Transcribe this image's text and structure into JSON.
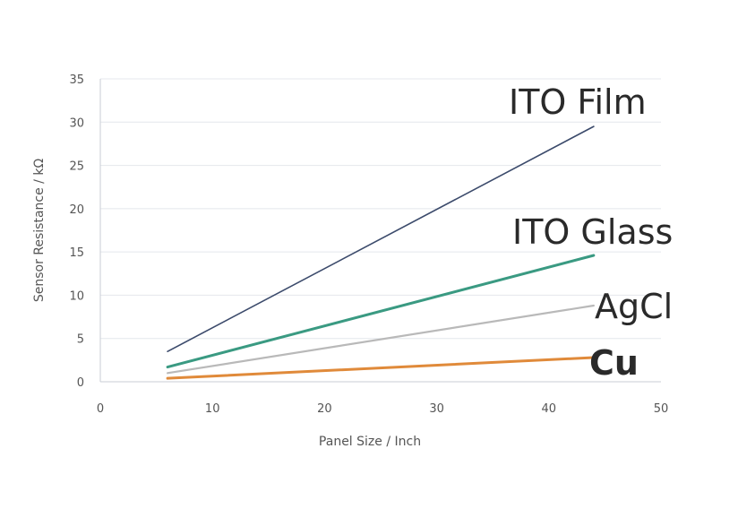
{
  "chart_data": {
    "type": "line",
    "title": "",
    "xlabel": "Panel Size / Inch",
    "ylabel": "Sensor Resistance / kΩ",
    "xlim": [
      0,
      50
    ],
    "ylim": [
      0,
      35
    ],
    "x_ticks": [
      "0",
      "10",
      "20",
      "30",
      "40",
      "50"
    ],
    "y_ticks": [
      "0",
      "5",
      "10",
      "15",
      "20",
      "25",
      "30",
      "35"
    ],
    "grid": true,
    "series": [
      {
        "name": "ITO Film",
        "color": "#3b4a6b",
        "x": [
          6,
          44
        ],
        "y": [
          3.5,
          29.5
        ]
      },
      {
        "name": "ITO Glass",
        "color": "#3a9a82",
        "x": [
          6,
          44
        ],
        "y": [
          1.7,
          14.6
        ]
      },
      {
        "name": "AgCl",
        "color": "#b9b9b9",
        "x": [
          6,
          44
        ],
        "y": [
          1.0,
          8.8
        ]
      },
      {
        "name": "Cu",
        "color": "#e08a3a",
        "x": [
          6,
          44
        ],
        "y": [
          0.4,
          2.8
        ]
      }
    ]
  }
}
